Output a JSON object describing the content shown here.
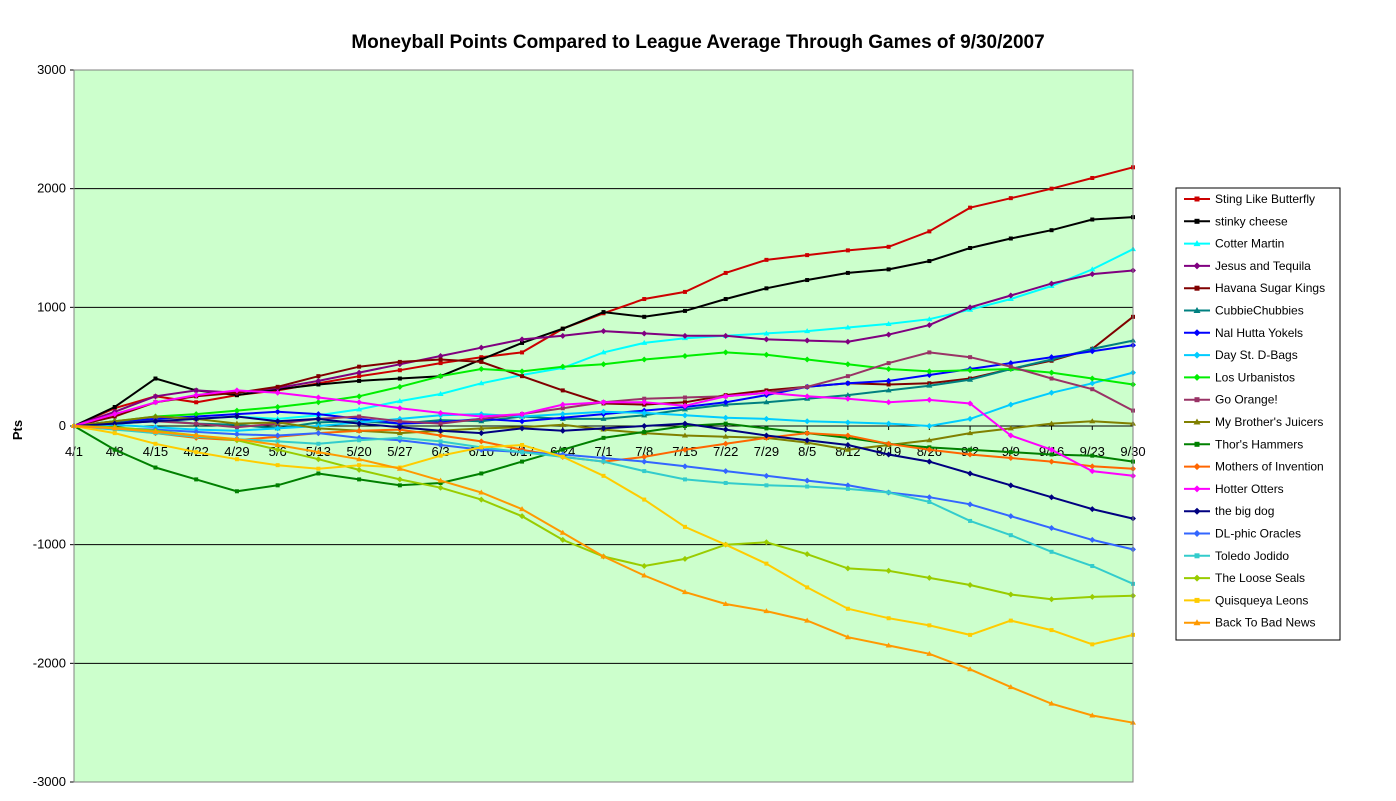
{
  "chart_data": {
    "type": "line",
    "title": "Moneyball Points Compared to League Average Through Games of 9/30/2007",
    "xlabel": "",
    "ylabel": "Pts",
    "ylim": [
      -3000,
      3000
    ],
    "yticks": [
      3000,
      2000,
      1000,
      0,
      -1000,
      -2000,
      -3000
    ],
    "x_tick_labels": [
      "4/1",
      "4/8",
      "4/15",
      "4/22",
      "4/29",
      "5/6",
      "5/13",
      "5/20",
      "5/27",
      "6/3",
      "6/10",
      "6/17",
      "6/24",
      "7/1",
      "7/8",
      "7/15",
      "7/22",
      "7/29",
      "8/5",
      "8/12",
      "8/19",
      "8/26",
      "9/2",
      "9/9",
      "9/16",
      "9/23",
      "9/30"
    ],
    "grid": "horizontal",
    "legend_position": "right",
    "plot_background": "#ccffcc",
    "series": [
      {
        "name": "Sting Like Butterfly",
        "color": "#cc0000",
        "marker": "square",
        "values": [
          0,
          150,
          250,
          200,
          260,
          300,
          360,
          420,
          470,
          530,
          580,
          620,
          820,
          950,
          1070,
          1130,
          1290,
          1400,
          1440,
          1480,
          1510,
          1640,
          1840,
          1920,
          2000,
          2090,
          2180
        ]
      },
      {
        "name": "stinky cheese",
        "color": "#000000",
        "marker": "square",
        "values": [
          0,
          160,
          400,
          300,
          260,
          310,
          350,
          380,
          400,
          420,
          560,
          700,
          820,
          960,
          920,
          970,
          1070,
          1160,
          1230,
          1290,
          1320,
          1390,
          1500,
          1580,
          1650,
          1740,
          1760
        ]
      },
      {
        "name": "Cotter Martin",
        "color": "#00ffff",
        "marker": "triangle",
        "values": [
          0,
          20,
          40,
          60,
          80,
          60,
          90,
          140,
          210,
          270,
          360,
          430,
          490,
          620,
          700,
          740,
          760,
          780,
          800,
          830,
          860,
          900,
          980,
          1070,
          1180,
          1320,
          1490
        ]
      },
      {
        "name": "Jesus and Tequila",
        "color": "#800080",
        "marker": "diamond",
        "values": [
          0,
          120,
          250,
          300,
          280,
          320,
          380,
          450,
          520,
          590,
          660,
          730,
          760,
          800,
          780,
          760,
          760,
          730,
          720,
          710,
          770,
          850,
          1000,
          1100,
          1200,
          1280,
          1310
        ]
      },
      {
        "name": "Havana Sugar Kings",
        "color": "#800000",
        "marker": "square",
        "values": [
          0,
          80,
          200,
          250,
          280,
          330,
          420,
          500,
          540,
          560,
          540,
          420,
          300,
          190,
          180,
          200,
          260,
          300,
          330,
          360,
          350,
          360,
          400,
          480,
          550,
          650,
          920
        ]
      },
      {
        "name": "CubbieChubbies",
        "color": "#008080",
        "marker": "triangle",
        "values": [
          0,
          30,
          50,
          20,
          10,
          -20,
          30,
          40,
          20,
          50,
          40,
          80,
          60,
          60,
          90,
          140,
          180,
          200,
          230,
          260,
          300,
          340,
          390,
          480,
          560,
          650,
          720
        ]
      },
      {
        "name": "Nal Hutta Yokels",
        "color": "#0000ff",
        "marker": "diamond",
        "values": [
          0,
          40,
          60,
          80,
          100,
          120,
          100,
          60,
          20,
          30,
          60,
          40,
          70,
          100,
          130,
          160,
          200,
          260,
          330,
          360,
          380,
          430,
          480,
          530,
          580,
          630,
          680
        ]
      },
      {
        "name": "Day St. D-Bags",
        "color": "#00ccff",
        "marker": "diamond",
        "values": [
          0,
          10,
          -10,
          -30,
          -40,
          -20,
          0,
          30,
          60,
          90,
          100,
          80,
          100,
          120,
          110,
          90,
          70,
          60,
          40,
          30,
          20,
          0,
          60,
          180,
          280,
          360,
          450
        ]
      },
      {
        "name": "Los Urbanistos",
        "color": "#00ee00",
        "marker": "diamond",
        "values": [
          0,
          40,
          80,
          100,
          130,
          160,
          200,
          250,
          330,
          420,
          480,
          460,
          500,
          520,
          560,
          590,
          620,
          600,
          560,
          520,
          480,
          460,
          470,
          480,
          450,
          400,
          350
        ]
      },
      {
        "name": "Go Orange!",
        "color": "#993366",
        "marker": "square",
        "values": [
          0,
          20,
          40,
          20,
          -10,
          20,
          60,
          80,
          40,
          20,
          60,
          100,
          150,
          200,
          230,
          240,
          250,
          280,
          330,
          420,
          530,
          620,
          580,
          500,
          400,
          310,
          130
        ]
      },
      {
        "name": "My Brother's Juicers",
        "color": "#808000",
        "marker": "triangle",
        "values": [
          0,
          40,
          80,
          60,
          20,
          30,
          -20,
          -40,
          -60,
          -40,
          -20,
          -10,
          10,
          -30,
          -60,
          -80,
          -90,
          -100,
          -140,
          -200,
          -160,
          -120,
          -60,
          -20,
          20,
          40,
          20
        ]
      },
      {
        "name": "Thor's Hammers",
        "color": "#008000",
        "marker": "square",
        "values": [
          0,
          -200,
          -350,
          -450,
          -550,
          -500,
          -400,
          -450,
          -500,
          -480,
          -400,
          -300,
          -200,
          -100,
          -50,
          0,
          20,
          -20,
          -60,
          -100,
          -150,
          -180,
          -200,
          -220,
          -240,
          -250,
          -300
        ]
      },
      {
        "name": "Mothers of Invention",
        "color": "#ff6600",
        "marker": "diamond",
        "values": [
          0,
          -20,
          -60,
          -100,
          -120,
          -90,
          -60,
          -40,
          -30,
          -80,
          -130,
          -200,
          -260,
          -300,
          -260,
          -200,
          -150,
          -100,
          -60,
          -80,
          -150,
          -200,
          -240,
          -270,
          -300,
          -340,
          -360
        ]
      },
      {
        "name": "Hotter Otters",
        "color": "#ff00ff",
        "marker": "diamond",
        "values": [
          0,
          100,
          200,
          260,
          300,
          280,
          240,
          200,
          150,
          110,
          80,
          100,
          180,
          200,
          200,
          170,
          250,
          280,
          250,
          230,
          200,
          220,
          190,
          -80,
          -200,
          -380,
          -420
        ]
      },
      {
        "name": "the big dog",
        "color": "#000080",
        "marker": "diamond",
        "values": [
          0,
          20,
          40,
          60,
          80,
          40,
          60,
          20,
          -10,
          -40,
          -60,
          -20,
          -40,
          -20,
          0,
          20,
          -30,
          -80,
          -120,
          -160,
          -240,
          -300,
          -400,
          -500,
          -600,
          -700,
          -780
        ]
      },
      {
        "name": "DL-phic Oracles",
        "color": "#3366ff",
        "marker": "diamond",
        "values": [
          0,
          -20,
          -30,
          -50,
          -70,
          -80,
          -60,
          -100,
          -120,
          -160,
          -200,
          -220,
          -240,
          -270,
          -300,
          -340,
          -380,
          -420,
          -460,
          -500,
          -560,
          -600,
          -660,
          -760,
          -860,
          -960,
          -1040
        ]
      },
      {
        "name": "Toledo Jodido",
        "color": "#33cccc",
        "marker": "square",
        "values": [
          0,
          -30,
          -60,
          -90,
          -110,
          -130,
          -150,
          -120,
          -100,
          -130,
          -180,
          -220,
          -260,
          -300,
          -380,
          -450,
          -480,
          -500,
          -510,
          -530,
          -560,
          -640,
          -800,
          -920,
          -1060,
          -1180,
          -1330
        ]
      },
      {
        "name": "The Loose Seals",
        "color": "#99cc00",
        "marker": "diamond",
        "values": [
          0,
          -10,
          -40,
          -80,
          -120,
          -200,
          -280,
          -370,
          -450,
          -520,
          -620,
          -760,
          -960,
          -1100,
          -1180,
          -1120,
          -1000,
          -980,
          -1080,
          -1200,
          -1220,
          -1280,
          -1340,
          -1420,
          -1460,
          -1440,
          -1430
        ]
      },
      {
        "name": "Quisqueya Leons",
        "color": "#ffcc00",
        "marker": "square",
        "values": [
          0,
          -60,
          -150,
          -220,
          -280,
          -330,
          -360,
          -330,
          -350,
          -250,
          -180,
          -160,
          -260,
          -420,
          -620,
          -850,
          -1000,
          -1160,
          -1360,
          -1540,
          -1620,
          -1680,
          -1760,
          -1640,
          -1720,
          -1840,
          -1760
        ]
      },
      {
        "name": "Back To Bad News",
        "color": "#ff9900",
        "marker": "triangle",
        "values": [
          0,
          -20,
          -50,
          -80,
          -110,
          -160,
          -220,
          -280,
          -360,
          -460,
          -560,
          -700,
          -900,
          -1100,
          -1260,
          -1400,
          -1500,
          -1560,
          -1640,
          -1780,
          -1850,
          -1920,
          -2050,
          -2200,
          -2340,
          -2440,
          -2500
        ]
      }
    ]
  }
}
